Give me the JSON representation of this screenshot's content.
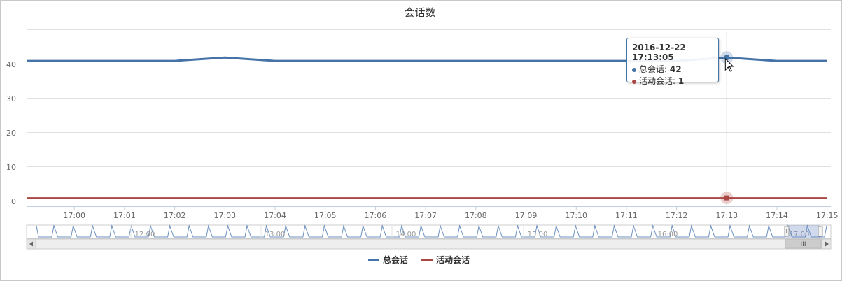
{
  "chart_data": {
    "type": "line",
    "title": "会话数",
    "xlabel": "",
    "ylabel": "",
    "x": [
      "16:59:05",
      "17:00:05",
      "17:01:05",
      "17:02:05",
      "17:03:05",
      "17:04:05",
      "17:05:05",
      "17:06:05",
      "17:07:05",
      "17:08:05",
      "17:09:05",
      "17:10:05",
      "17:11:05",
      "17:12:05",
      "17:13:05",
      "17:14:05",
      "17:15:05"
    ],
    "x_ticks": [
      "17:00",
      "17:01",
      "17:02",
      "17:03",
      "17:04",
      "17:05",
      "17:06",
      "17:07",
      "17:08",
      "17:09",
      "17:10",
      "17:11",
      "17:12",
      "17:13",
      "17:14",
      "17:15"
    ],
    "y_ticks": [
      0,
      10,
      20,
      30,
      40
    ],
    "ylim": [
      0,
      50
    ],
    "grid": true,
    "legend_position": "bottom-center",
    "series": [
      {
        "name": "总会话",
        "color": "#4572a7",
        "values": [
          41,
          41,
          41,
          41,
          42,
          41,
          41,
          41,
          41,
          41,
          41,
          41,
          41,
          41,
          42,
          41,
          41
        ]
      },
      {
        "name": "活动会话",
        "color": "#aa4643",
        "values": [
          1,
          1,
          1,
          1,
          1,
          1,
          1,
          1,
          1,
          1,
          1,
          1,
          1,
          1,
          1,
          1,
          1
        ]
      }
    ],
    "tooltip": {
      "title": "2016-12-22 17:13:05",
      "rows": [
        {
          "label": "总会话: ",
          "value": "42",
          "color": "#4572a7"
        },
        {
          "label": "活动会话: ",
          "value": "1",
          "color": "#aa4643"
        }
      ],
      "index": 14
    },
    "navigator": {
      "ticks": [
        "12:00",
        "13:00",
        "14:00",
        "15:00",
        "16:00",
        "17:00"
      ],
      "scroll_label": "III"
    }
  }
}
